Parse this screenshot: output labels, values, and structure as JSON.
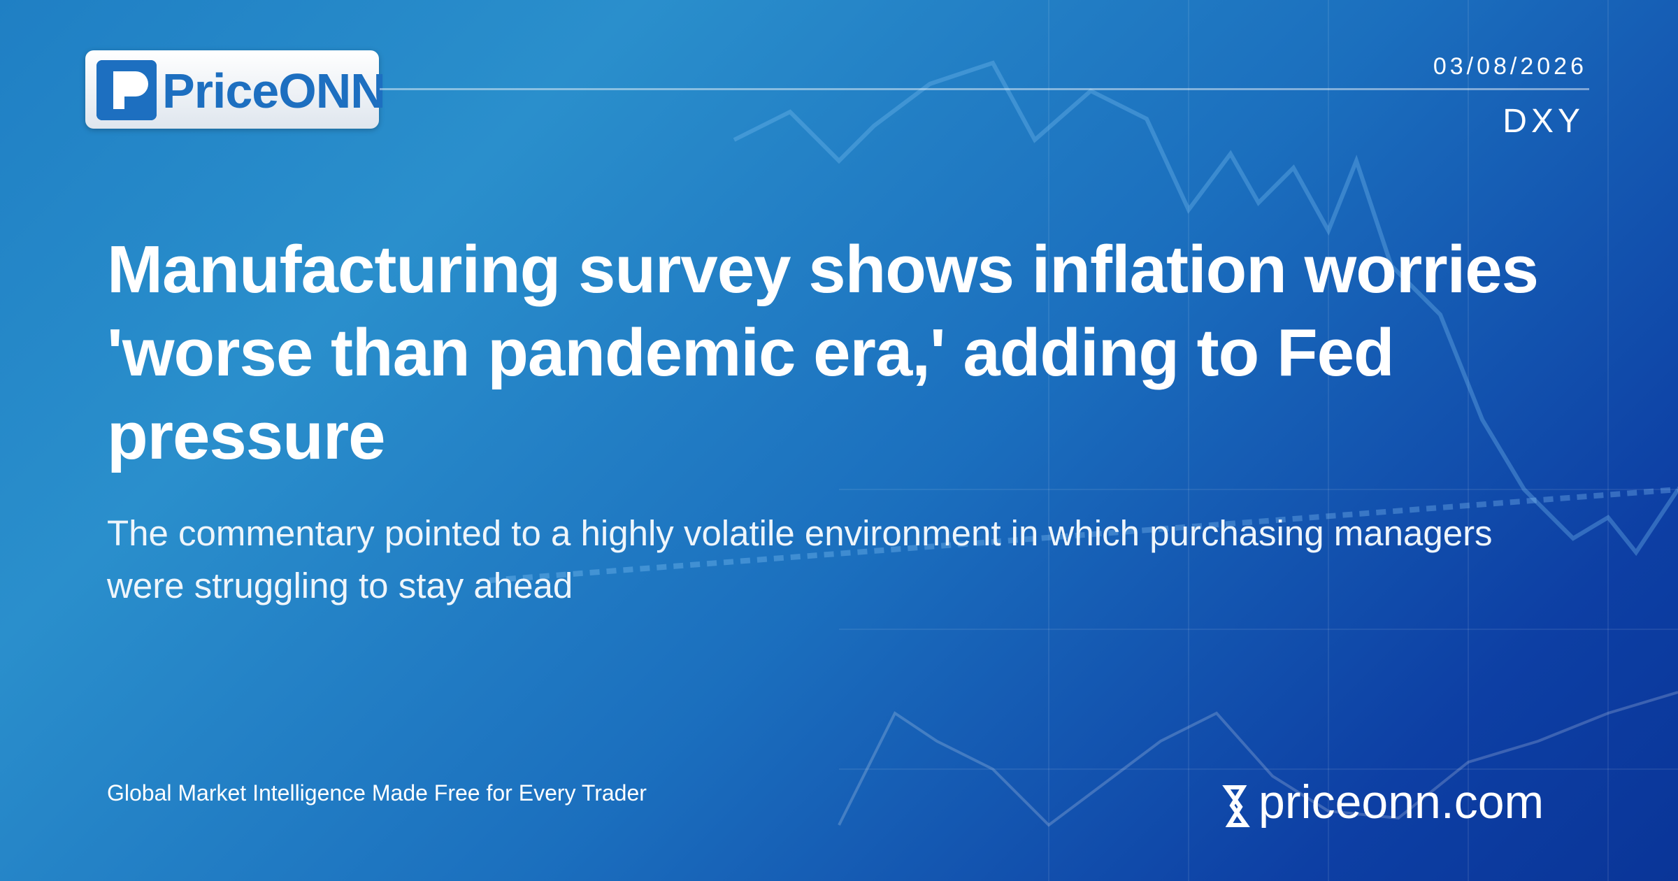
{
  "header": {
    "logo": "PriceONN",
    "date": "03/08/2026",
    "ticker": "DXY"
  },
  "article": {
    "title": "Manufacturing survey shows inflation worries 'worse than pandemic era,' adding to Fed pressure",
    "subtitle": "The commentary pointed to a highly volatile environment in which purchasing managers were struggling to stay ahead"
  },
  "footer": {
    "tagline": "Global Market Intelligence Made Free for Every Trader",
    "domain": "priceonn.com"
  }
}
